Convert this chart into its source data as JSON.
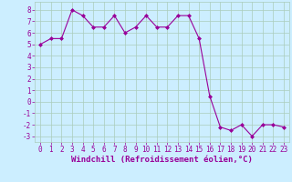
{
  "x": [
    0,
    1,
    2,
    3,
    4,
    5,
    6,
    7,
    8,
    9,
    10,
    11,
    12,
    13,
    14,
    15,
    16,
    17,
    18,
    19,
    20,
    21,
    22,
    23
  ],
  "y": [
    5.0,
    5.5,
    5.5,
    8.0,
    7.5,
    6.5,
    6.5,
    7.5,
    6.0,
    6.5,
    7.5,
    6.5,
    6.5,
    7.5,
    7.5,
    5.5,
    0.5,
    -2.2,
    -2.5,
    -2.0,
    -3.0,
    -2.0,
    -2.0,
    -2.2
  ],
  "line_color": "#990099",
  "marker": "D",
  "markersize": 2.0,
  "linewidth": 0.8,
  "bg_color": "#cceeff",
  "grid_color": "#aaccbb",
  "xlabel": "Windchill (Refroidissement éolien,°C)",
  "xlabel_fontsize": 6.5,
  "xlabel_color": "#990099",
  "xlim": [
    -0.5,
    23.5
  ],
  "ylim": [
    -3.5,
    8.7
  ],
  "yticks": [
    -3,
    -2,
    -1,
    0,
    1,
    2,
    3,
    4,
    5,
    6,
    7,
    8
  ],
  "xticks": [
    0,
    1,
    2,
    3,
    4,
    5,
    6,
    7,
    8,
    9,
    10,
    11,
    12,
    13,
    14,
    15,
    16,
    17,
    18,
    19,
    20,
    21,
    22,
    23
  ],
  "tick_fontsize": 5.5,
  "tick_color": "#990099"
}
